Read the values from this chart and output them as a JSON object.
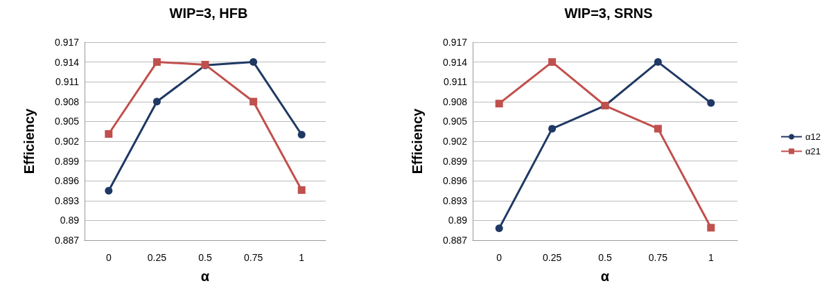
{
  "chart_data": [
    {
      "type": "line",
      "title": "WIP=3, HFB",
      "xlabel": "α",
      "ylabel": "Efficiency",
      "categories": [
        "0",
        "0.25",
        "0.5",
        "0.75",
        "1"
      ],
      "series": [
        {
          "color": "#1f3864",
          "marker": "circle",
          "values": [
            0.8945,
            0.908,
            0.9135,
            0.914,
            0.903
          ]
        },
        {
          "color": "#c0504d",
          "marker": "square",
          "values": [
            0.9031,
            0.914,
            0.9136,
            0.908,
            0.8946
          ]
        }
      ],
      "ylim": [
        0.887,
        0.917
      ],
      "yticks": [
        0.887,
        0.89,
        0.893,
        0.896,
        0.899,
        0.902,
        0.905,
        0.908,
        0.911,
        0.914,
        0.917
      ],
      "grid": "y",
      "legend": false
    },
    {
      "type": "line",
      "title": "WIP=3, SRNS",
      "xlabel": "α",
      "ylabel": "Efficiency",
      "categories": [
        "0",
        "0.25",
        "0.5",
        "0.75",
        "1"
      ],
      "series": [
        {
          "name": "α12",
          "color": "#1f3864",
          "marker": "circle",
          "values": [
            0.8888,
            0.9039,
            0.9074,
            0.914,
            0.9078
          ]
        },
        {
          "name": "α21",
          "color": "#c0504d",
          "marker": "square",
          "values": [
            0.9077,
            0.914,
            0.9074,
            0.9039,
            0.8889
          ]
        }
      ],
      "ylim": [
        0.887,
        0.917
      ],
      "yticks": [
        0.887,
        0.89,
        0.893,
        0.896,
        0.899,
        0.902,
        0.905,
        0.908,
        0.911,
        0.914,
        0.917
      ],
      "grid": "y",
      "legend": "right"
    }
  ]
}
